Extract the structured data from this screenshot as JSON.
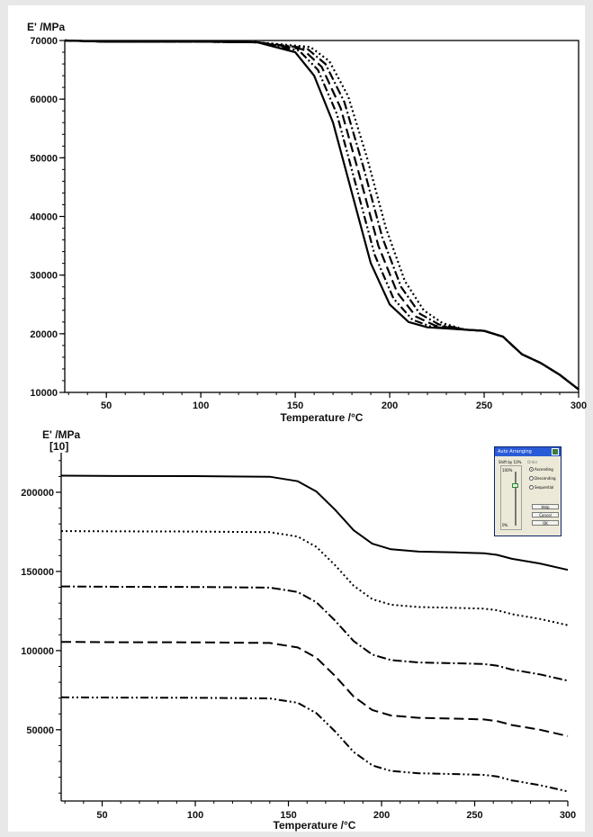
{
  "chart_data": [
    {
      "type": "line",
      "title": "",
      "xlabel": "Temperature /°C",
      "ylabel": "E' /MPa",
      "xlim": [
        28,
        300
      ],
      "ylim": [
        10000,
        70000
      ],
      "xticks": [
        50,
        100,
        150,
        200,
        250,
        300
      ],
      "yticks": [
        10000,
        20000,
        30000,
        40000,
        50000,
        60000,
        70000
      ],
      "grid": false,
      "legend": "none",
      "series": [
        {
          "style": "solid",
          "points": [
            [
              28,
              70000
            ],
            [
              50,
              69800
            ],
            [
              100,
              69800
            ],
            [
              130,
              69700
            ],
            [
              150,
              68000
            ],
            [
              160,
              64000
            ],
            [
              170,
              56000
            ],
            [
              180,
              44000
            ],
            [
              190,
              32000
            ],
            [
              200,
              25000
            ],
            [
              210,
              22000
            ],
            [
              220,
              21100
            ],
            [
              240,
              20700
            ],
            [
              250,
              20500
            ],
            [
              260,
              19500
            ],
            [
              265,
              18000
            ],
            [
              270,
              16500
            ],
            [
              280,
              15000
            ],
            [
              290,
              13000
            ],
            [
              300,
              10500
            ]
          ]
        },
        {
          "style": "dash-dot-dot",
          "points": [
            [
              28,
              70000
            ],
            [
              50,
              69800
            ],
            [
              100,
              69800
            ],
            [
              130,
              69700
            ],
            [
              152,
              68300
            ],
            [
              162,
              65000
            ],
            [
              172,
              57500
            ],
            [
              182,
              45500
            ],
            [
              192,
              33500
            ],
            [
              202,
              26000
            ],
            [
              212,
              22400
            ],
            [
              222,
              21200
            ],
            [
              240,
              20700
            ],
            [
              250,
              20500
            ],
            [
              260,
              19500
            ],
            [
              265,
              18000
            ],
            [
              270,
              16500
            ],
            [
              280,
              15000
            ],
            [
              290,
              13000
            ],
            [
              300,
              10500
            ]
          ]
        },
        {
          "style": "dashed",
          "points": [
            [
              28,
              70000
            ],
            [
              50,
              69800
            ],
            [
              100,
              69800
            ],
            [
              130,
              69700
            ],
            [
              154,
              68500
            ],
            [
              164,
              65500
            ],
            [
              174,
              58500
            ],
            [
              184,
              47000
            ],
            [
              194,
              35000
            ],
            [
              204,
              27000
            ],
            [
              214,
              22900
            ],
            [
              224,
              21400
            ],
            [
              240,
              20700
            ],
            [
              250,
              20500
            ],
            [
              260,
              19500
            ],
            [
              265,
              18000
            ],
            [
              270,
              16500
            ],
            [
              280,
              15000
            ],
            [
              290,
              13000
            ],
            [
              300,
              10500
            ]
          ]
        },
        {
          "style": "dash-dot",
          "points": [
            [
              28,
              70000
            ],
            [
              50,
              69800
            ],
            [
              100,
              69800
            ],
            [
              130,
              69700
            ],
            [
              156,
              68700
            ],
            [
              166,
              66000
            ],
            [
              176,
              59500
            ],
            [
              186,
              48500
            ],
            [
              196,
              36500
            ],
            [
              206,
              28000
            ],
            [
              216,
              23400
            ],
            [
              226,
              21600
            ],
            [
              240,
              20700
            ],
            [
              250,
              20500
            ],
            [
              260,
              19500
            ],
            [
              265,
              18000
            ],
            [
              270,
              16500
            ],
            [
              280,
              15000
            ],
            [
              290,
              13000
            ],
            [
              300,
              10500
            ]
          ]
        },
        {
          "style": "dotted",
          "points": [
            [
              28,
              70000
            ],
            [
              50,
              69800
            ],
            [
              100,
              69800
            ],
            [
              130,
              69700
            ],
            [
              158,
              68900
            ],
            [
              168,
              66500
            ],
            [
              178,
              60500
            ],
            [
              188,
              50000
            ],
            [
              198,
              38000
            ],
            [
              208,
              29000
            ],
            [
              218,
              24000
            ],
            [
              228,
              21800
            ],
            [
              240,
              20700
            ],
            [
              250,
              20500
            ],
            [
              260,
              19500
            ],
            [
              265,
              18000
            ],
            [
              270,
              16500
            ],
            [
              280,
              15000
            ],
            [
              290,
              13000
            ],
            [
              300,
              10500
            ]
          ]
        }
      ]
    },
    {
      "type": "line",
      "title": "",
      "xlabel": "Temperature /°C",
      "ylabel": "E' /MPa",
      "ylabel2": "[10]",
      "xlim": [
        28,
        300
      ],
      "ylim": [
        5000,
        225000
      ],
      "xticks": [
        50,
        100,
        150,
        200,
        250,
        300
      ],
      "yticks": [
        50000,
        100000,
        150000,
        200000
      ],
      "grid": false,
      "legend": "none",
      "series": [
        {
          "style": "solid",
          "points": [
            [
              28,
              210500
            ],
            [
              60,
              210300
            ],
            [
              100,
              210200
            ],
            [
              140,
              209800
            ],
            [
              155,
              207000
            ],
            [
              165,
              200500
            ],
            [
              175,
              189000
            ],
            [
              185,
              176000
            ],
            [
              195,
              167500
            ],
            [
              205,
              164000
            ],
            [
              220,
              162500
            ],
            [
              240,
              162000
            ],
            [
              255,
              161500
            ],
            [
              262,
              160500
            ],
            [
              270,
              158000
            ],
            [
              285,
              155000
            ],
            [
              300,
              151000
            ]
          ]
        },
        {
          "style": "dotted",
          "points": [
            [
              28,
              175500
            ],
            [
              60,
              175300
            ],
            [
              100,
              175200
            ],
            [
              140,
              174800
            ],
            [
              155,
              172000
            ],
            [
              165,
              165500
            ],
            [
              175,
              154000
            ],
            [
              185,
              141000
            ],
            [
              195,
              132500
            ],
            [
              205,
              129000
            ],
            [
              220,
              127500
            ],
            [
              240,
              127000
            ],
            [
              255,
              126500
            ],
            [
              262,
              125500
            ],
            [
              270,
              123000
            ],
            [
              285,
              120000
            ],
            [
              300,
              116000
            ]
          ]
        },
        {
          "style": "dash-dot",
          "points": [
            [
              28,
              140500
            ],
            [
              60,
              140300
            ],
            [
              100,
              140200
            ],
            [
              140,
              139800
            ],
            [
              155,
              137000
            ],
            [
              165,
              130500
            ],
            [
              175,
              119000
            ],
            [
              185,
              106000
            ],
            [
              195,
              97500
            ],
            [
              205,
              94000
            ],
            [
              220,
              92500
            ],
            [
              240,
              92000
            ],
            [
              255,
              91500
            ],
            [
              262,
              90500
            ],
            [
              270,
              88000
            ],
            [
              285,
              85000
            ],
            [
              300,
              81000
            ]
          ]
        },
        {
          "style": "dashed",
          "points": [
            [
              28,
              105500
            ],
            [
              60,
              105300
            ],
            [
              100,
              105200
            ],
            [
              140,
              104800
            ],
            [
              155,
              102000
            ],
            [
              165,
              95500
            ],
            [
              175,
              84000
            ],
            [
              185,
              71000
            ],
            [
              195,
              62500
            ],
            [
              205,
              59000
            ],
            [
              220,
              57500
            ],
            [
              240,
              57000
            ],
            [
              255,
              56500
            ],
            [
              262,
              55500
            ],
            [
              270,
              53000
            ],
            [
              285,
              50000
            ],
            [
              300,
              46000
            ]
          ]
        },
        {
          "style": "dash-dot-dot",
          "points": [
            [
              28,
              70500
            ],
            [
              60,
              70300
            ],
            [
              100,
              70200
            ],
            [
              140,
              69800
            ],
            [
              155,
              67000
            ],
            [
              165,
              60500
            ],
            [
              175,
              49000
            ],
            [
              185,
              36000
            ],
            [
              195,
              27500
            ],
            [
              205,
              24000
            ],
            [
              220,
              22500
            ],
            [
              240,
              22000
            ],
            [
              255,
              21500
            ],
            [
              262,
              20500
            ],
            [
              270,
              18000
            ],
            [
              285,
              15000
            ],
            [
              300,
              11000
            ]
          ]
        }
      ]
    }
  ],
  "dialog": {
    "title": "Auto Arranging",
    "shift_label": "Shift by 10%",
    "order_label": "Order",
    "slider_max": "100%",
    "slider_min": "0%",
    "slider_level_percent": 75,
    "options": [
      "Ascending",
      "Descending",
      "Sequential"
    ],
    "selected_option": "Ascending",
    "buttons": [
      "Help",
      "Cancel",
      "OK"
    ],
    "title_color": "#2a5bd7"
  }
}
